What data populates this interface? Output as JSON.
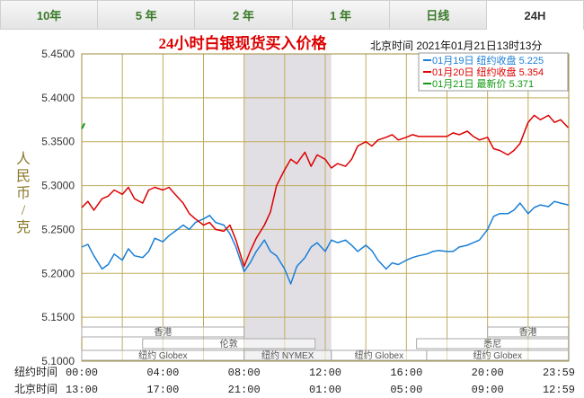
{
  "tabs": [
    {
      "label": "10年",
      "active": false
    },
    {
      "label": "5 年",
      "active": false
    },
    {
      "label": "2 年",
      "active": false
    },
    {
      "label": "1 年",
      "active": false
    },
    {
      "label": "日线",
      "active": false
    },
    {
      "label": "24H",
      "active": true
    }
  ],
  "chart_data": {
    "type": "line",
    "title": "24小时白银现货买入价格",
    "timestamp": "北京时间  2021年01月21日13时13分",
    "ylabel": "人民币/克",
    "ylim": [
      5.1,
      5.45
    ],
    "yticks": [
      "5.4500",
      "5.4000",
      "5.3500",
      "5.3000",
      "5.2500",
      "5.2000",
      "5.1500",
      "5.1000"
    ],
    "ytick_values": [
      5.45,
      5.4,
      5.35,
      5.3,
      5.25,
      5.2,
      5.15,
      5.1
    ],
    "xlim": [
      0,
      24
    ],
    "x_row1_label": "纽约时间",
    "x_row1": [
      "00:00",
      "04:00",
      "08:00",
      "12:00",
      "16:00",
      "20:00",
      "23:59"
    ],
    "x_row2_label": "北京时间",
    "x_row2": [
      "13:00",
      "17:00",
      "21:00",
      "01:00",
      "05:00",
      "09:00",
      "12:59"
    ],
    "x_tick_positions": [
      0,
      4,
      8,
      12,
      16,
      20,
      24
    ],
    "legend": [
      {
        "text": "01月19日  纽约收盘 5.225",
        "color": "#1a7fd6"
      },
      {
        "text": "01月20日  纽约收盘 5.354",
        "color": "#dd0000"
      },
      {
        "text": "01月21日   最新价 5.371",
        "color": "#119911"
      }
    ],
    "shaded_span": [
      8,
      12.3
    ],
    "series": [
      {
        "color": "#1a7fd6",
        "x": [
          0,
          0.3,
          0.6,
          1.0,
          1.3,
          1.6,
          2.0,
          2.3,
          2.6,
          3.0,
          3.3,
          3.6,
          4.0,
          4.3,
          4.6,
          5.0,
          5.3,
          5.6,
          6.0,
          6.3,
          6.6,
          7.0,
          7.3,
          7.6,
          8.0,
          8.3,
          8.6,
          9.0,
          9.3,
          9.6,
          10.0,
          10.3,
          10.6,
          11.0,
          11.3,
          11.6,
          12.0,
          12.3,
          12.6,
          13.0,
          13.3,
          13.6,
          14.0,
          14.3,
          14.6,
          15.0,
          15.3,
          15.6,
          16.0,
          16.3,
          16.6,
          17.0,
          17.3,
          17.6,
          18.0,
          18.3,
          18.6,
          19.0,
          19.3,
          19.6,
          20.0,
          20.3,
          20.6,
          21.0,
          21.3,
          21.6,
          22.0,
          22.3,
          22.6,
          23.0,
          23.3,
          23.6,
          23.98
        ],
        "y": [
          5.23,
          5.233,
          5.22,
          5.205,
          5.21,
          5.222,
          5.215,
          5.228,
          5.22,
          5.218,
          5.225,
          5.24,
          5.236,
          5.243,
          5.248,
          5.255,
          5.25,
          5.258,
          5.262,
          5.266,
          5.258,
          5.255,
          5.245,
          5.23,
          5.202,
          5.212,
          5.225,
          5.238,
          5.225,
          5.22,
          5.205,
          5.188,
          5.208,
          5.218,
          5.23,
          5.235,
          5.225,
          5.238,
          5.235,
          5.238,
          5.232,
          5.225,
          5.232,
          5.226,
          5.215,
          5.205,
          5.212,
          5.21,
          5.215,
          5.218,
          5.22,
          5.222,
          5.225,
          5.226,
          5.225,
          5.225,
          5.23,
          5.232,
          5.235,
          5.238,
          5.25,
          5.265,
          5.268,
          5.268,
          5.272,
          5.28,
          5.268,
          5.275,
          5.278,
          5.276,
          5.282,
          5.28,
          5.278
        ]
      },
      {
        "color": "#dd0000",
        "x": [
          0,
          0.3,
          0.6,
          1.0,
          1.3,
          1.6,
          2.0,
          2.3,
          2.6,
          3.0,
          3.3,
          3.6,
          4.0,
          4.3,
          4.6,
          5.0,
          5.3,
          5.6,
          6.0,
          6.3,
          6.6,
          7.0,
          7.3,
          7.6,
          8.0,
          8.3,
          8.6,
          9.0,
          9.3,
          9.6,
          10.0,
          10.3,
          10.6,
          11.0,
          11.3,
          11.6,
          12.0,
          12.3,
          12.6,
          13.0,
          13.3,
          13.6,
          14.0,
          14.3,
          14.6,
          15.0,
          15.3,
          15.6,
          16.0,
          16.3,
          16.6,
          17.0,
          17.3,
          17.6,
          18.0,
          18.3,
          18.6,
          19.0,
          19.3,
          19.6,
          20.0,
          20.3,
          20.6,
          21.0,
          21.3,
          21.6,
          22.0,
          22.3,
          22.6,
          23.0,
          23.3,
          23.6,
          23.98
        ],
        "y": [
          5.275,
          5.282,
          5.272,
          5.285,
          5.288,
          5.295,
          5.29,
          5.298,
          5.285,
          5.28,
          5.295,
          5.298,
          5.295,
          5.298,
          5.29,
          5.28,
          5.268,
          5.262,
          5.255,
          5.258,
          5.25,
          5.248,
          5.255,
          5.238,
          5.208,
          5.225,
          5.24,
          5.255,
          5.27,
          5.3,
          5.318,
          5.33,
          5.325,
          5.338,
          5.322,
          5.335,
          5.33,
          5.32,
          5.325,
          5.322,
          5.33,
          5.345,
          5.35,
          5.345,
          5.352,
          5.355,
          5.358,
          5.352,
          5.355,
          5.358,
          5.356,
          5.356,
          5.356,
          5.356,
          5.356,
          5.36,
          5.358,
          5.362,
          5.356,
          5.352,
          5.355,
          5.342,
          5.34,
          5.335,
          5.34,
          5.348,
          5.372,
          5.38,
          5.375,
          5.38,
          5.372,
          5.375,
          5.366
        ]
      },
      {
        "color": "#119911",
        "x": [
          0.05
        ],
        "y": [
          5.371
        ]
      }
    ],
    "markets_row1": [
      {
        "label": "香港",
        "start": 0,
        "end": 8
      },
      {
        "label": "香港",
        "start": 20,
        "end": 23.98
      }
    ],
    "markets_row2": [
      {
        "label": "伦敦",
        "start": 3,
        "end": 11.5
      },
      {
        "label": "悉尼",
        "start": 16.5,
        "end": 23.98
      }
    ],
    "markets_row3": [
      {
        "label": "纽约 Globex",
        "start": 0,
        "end": 8
      },
      {
        "label": "纽约 NYMEX",
        "start": 8,
        "end": 12.3
      },
      {
        "label": "纽约 Globex",
        "start": 12.3,
        "end": 17
      },
      {
        "label": "纽约 Globex",
        "start": 17,
        "end": 23.98
      }
    ]
  }
}
